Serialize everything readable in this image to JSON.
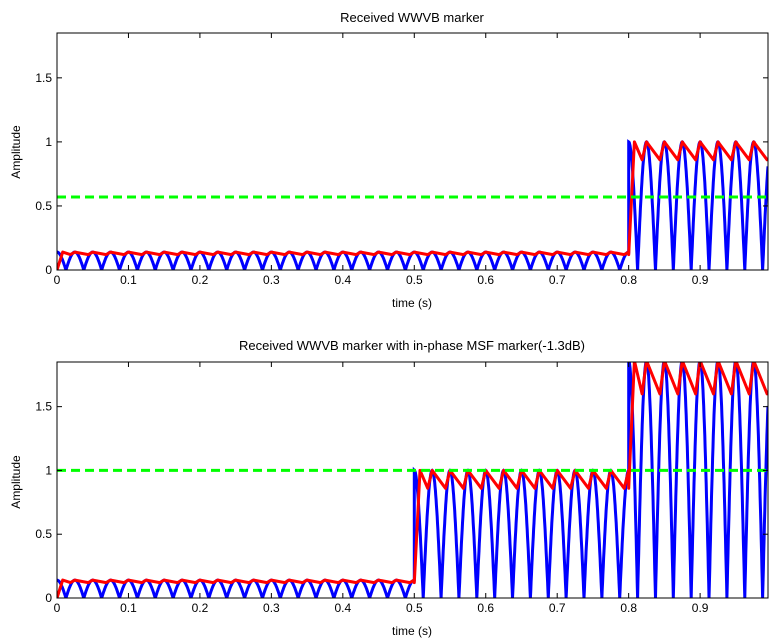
{
  "chart_data": [
    {
      "type": "line",
      "title": "Received WWVB marker",
      "xlabel": "time (s)",
      "ylabel": "Amplitude",
      "xlim": [
        0,
        0.995
      ],
      "ylim": [
        0,
        1.85
      ],
      "xticks": [
        "0",
        "0.1",
        "0.2",
        "0.3",
        "0.4",
        "0.5",
        "0.6",
        "0.7",
        "0.8",
        "0.9"
      ],
      "yticks": [
        "0",
        "0.5",
        "1",
        "1.5"
      ],
      "grid": false,
      "series": [
        {
          "role": "rectified-carrier",
          "color": "#0000ff",
          "segments": [
            {
              "x_start": 0,
              "x_end": 0.8,
              "amplitude": 0.14
            },
            {
              "x_start": 0.8,
              "x_end": 0.995,
              "amplitude": 1.0
            }
          ]
        },
        {
          "role": "envelope",
          "color": "#ff0000",
          "segments": [
            {
              "x_start": 0,
              "x_end": 0.8,
              "level": 0.14
            },
            {
              "x_start": 0.8,
              "x_end": 0.995,
              "level": 1.0
            }
          ]
        },
        {
          "role": "threshold",
          "color": "#00ff00",
          "style": "dashed",
          "value": 0.57
        }
      ]
    },
    {
      "type": "line",
      "title": "Received WWVB marker with in-phase MSF marker(-1.3dB)",
      "xlabel": "time (s)",
      "ylabel": "Amplitude",
      "xlim": [
        0,
        0.995
      ],
      "ylim": [
        0,
        1.85
      ],
      "xticks": [
        "0",
        "0.1",
        "0.2",
        "0.3",
        "0.4",
        "0.5",
        "0.6",
        "0.7",
        "0.8",
        "0.9"
      ],
      "yticks": [
        "0",
        "0.5",
        "1",
        "1.5"
      ],
      "grid": false,
      "series": [
        {
          "role": "rectified-carrier",
          "color": "#0000ff",
          "segments": [
            {
              "x_start": 0,
              "x_end": 0.5,
              "amplitude": 0.14
            },
            {
              "x_start": 0.5,
              "x_end": 0.8,
              "amplitude": 1.0
            },
            {
              "x_start": 0.8,
              "x_end": 0.995,
              "amplitude": 1.86
            }
          ]
        },
        {
          "role": "envelope",
          "color": "#ff0000",
          "segments": [
            {
              "x_start": 0,
              "x_end": 0.5,
              "level": 0.14
            },
            {
              "x_start": 0.5,
              "x_end": 0.8,
              "level": 1.0
            },
            {
              "x_start": 0.8,
              "x_end": 0.995,
              "level": 1.86
            }
          ]
        },
        {
          "role": "threshold",
          "color": "#00ff00",
          "style": "dashed",
          "value": 1.0
        }
      ]
    }
  ]
}
